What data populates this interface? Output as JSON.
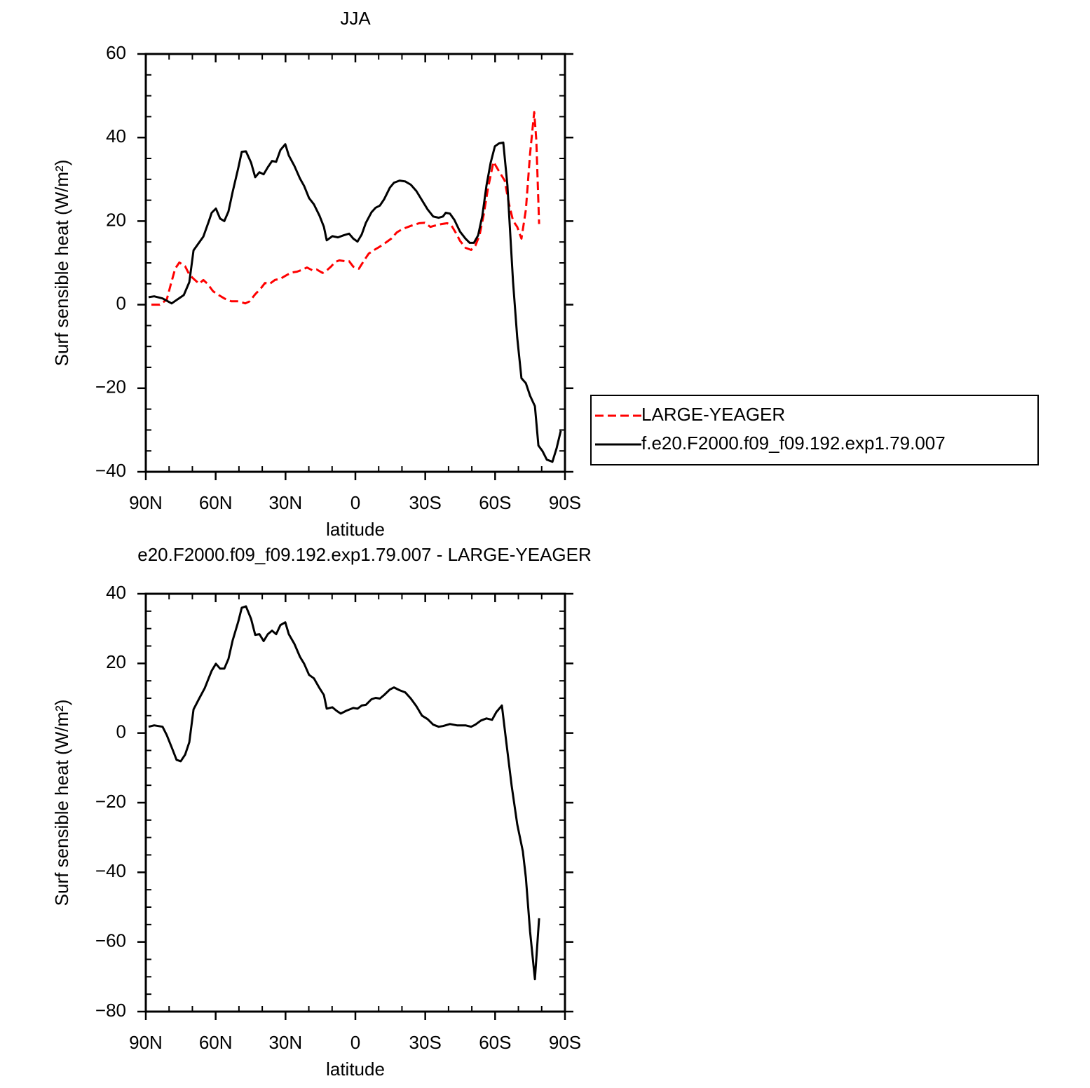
{
  "chart_data": [
    {
      "type": "line",
      "title": "JJA",
      "xlabel": "latitude",
      "ylabel": "Surf sensible heat (W/m²)",
      "xlim": [
        90,
        -90
      ],
      "xticks": [
        {
          "value": 90,
          "label": "90N"
        },
        {
          "value": 60,
          "label": "60N"
        },
        {
          "value": 30,
          "label": "30N"
        },
        0,
        {
          "value": -30,
          "label": "30S"
        },
        {
          "value": -60,
          "label": "60S"
        },
        {
          "value": -90,
          "label": "90S"
        }
      ],
      "ylim": [
        -40,
        60
      ],
      "yticks": [
        -40,
        -20,
        0,
        20,
        40,
        60
      ],
      "legend": "right",
      "series": [
        {
          "name": "LARGE-YEAGER",
          "color": "#ff0000",
          "linestyle": "dashed",
          "x": [
            87.6,
            84,
            81,
            79.2,
            77.4,
            75.6,
            73.1,
            71.3,
            69.5,
            67.1,
            65.3,
            63.5,
            61.1,
            58.7,
            56.3,
            53.3,
            50.3,
            47.3,
            45.4,
            43,
            40.6,
            38.8,
            37,
            34.6,
            32.2,
            29.8,
            27.4,
            25,
            22.6,
            20.8,
            18.4,
            16.6,
            14.1,
            12.3,
            10.5,
            8.7,
            6.9,
            4.5,
            2.7,
            0.9,
            -1.5,
            -3.3,
            -5.7,
            -8.1,
            -10.5,
            -12.9,
            -15.4,
            -17.8,
            -20.2,
            -22.6,
            -25,
            -27.4,
            -29.8,
            -32.2,
            -34.6,
            -37,
            -39.4,
            -41.2,
            -43,
            -44.9,
            -47.3,
            -49.7,
            -51.5,
            -53.3,
            -55.1,
            -56.9,
            -59.3,
            -61.7,
            -64.1,
            -65.9,
            -67.7,
            -69.5,
            -71.3,
            -73.2,
            -75,
            -76.8,
            -77.7,
            -78.9
          ],
          "values": [
            0,
            0,
            1.2,
            5,
            8.6,
            10.1,
            9.2,
            7.2,
            6.2,
            5,
            5.9,
            5,
            3.2,
            2.3,
            1.5,
            0.8,
            0.8,
            0.3,
            0.8,
            2.5,
            3.9,
            5.2,
            4.9,
            5.9,
            6.2,
            7,
            7.7,
            7.9,
            8.4,
            8.9,
            8.2,
            8.4,
            7.6,
            8.2,
            9.1,
            10.2,
            10.6,
            10.4,
            10.4,
            9.1,
            8.6,
            10.2,
            12.2,
            13.1,
            13.9,
            14.8,
            15.8,
            17.3,
            18.1,
            18.6,
            19.1,
            19.5,
            19.6,
            18.6,
            19,
            19.3,
            19.5,
            19,
            17.3,
            15.3,
            13.6,
            13.1,
            14.1,
            16.6,
            21.6,
            27.7,
            34.2,
            31.9,
            29.7,
            24.3,
            20.1,
            18.6,
            15.8,
            22.7,
            36.1,
            46.1,
            39.4,
            19.3
          ]
        },
        {
          "name": "f.e20.F2000.f09_f09.192.exp1.79.007",
          "color": "#000000",
          "linestyle": "solid",
          "x": [
            88.8,
            86.4,
            82.8,
            78.9,
            73.7,
            71.3,
            69.5,
            65.3,
            62.9,
            61.7,
            59.9,
            58.1,
            56.3,
            54.5,
            52.7,
            50.3,
            48.8,
            47,
            44.8,
            43,
            41.2,
            39.4,
            37.6,
            35.8,
            34,
            32.2,
            30.1,
            28.6,
            26.2,
            23.8,
            22,
            19.9,
            17.8,
            15.4,
            13.5,
            12.3,
            9.9,
            7.5,
            5.1,
            2.7,
            0.9,
            -0.9,
            -2.7,
            -4.5,
            -6.9,
            -8.7,
            -10.5,
            -12.3,
            -14.8,
            -16.6,
            -19,
            -21.4,
            -23.8,
            -26.2,
            -28.6,
            -31,
            -33.4,
            -35.8,
            -37.6,
            -38.8,
            -40.6,
            -42.5,
            -44.9,
            -47.3,
            -49.1,
            -50.9,
            -52.7,
            -54.5,
            -56.3,
            -58.1,
            -59.9,
            -61.7,
            -63.5,
            -65.3,
            -67.7,
            -69.5,
            -71.3,
            -73.2,
            -75,
            -77.1,
            -78.6,
            -80.4,
            -82.2,
            -84.6,
            -86.4,
            -88.2
          ],
          "values": [
            1.8,
            2,
            1.5,
            0.3,
            2.3,
            5.4,
            13,
            16.3,
            20,
            22,
            23,
            20.6,
            20,
            22.3,
            27,
            32.7,
            36.6,
            36.7,
            34,
            30.5,
            31.7,
            31.2,
            32.9,
            34.4,
            34.2,
            37,
            38.4,
            35.7,
            33.2,
            30.2,
            28.4,
            25.5,
            24,
            21.3,
            18.6,
            15.4,
            16.4,
            16.1,
            16.6,
            17,
            15.8,
            15.1,
            16.8,
            19.6,
            22.1,
            23.2,
            23.7,
            25.2,
            28,
            29.2,
            29.7,
            29.5,
            28.7,
            27.2,
            25,
            22.8,
            21.1,
            20.8,
            21.1,
            22,
            21.8,
            20.3,
            17.5,
            15.8,
            14.8,
            14.8,
            16.6,
            21.3,
            28.5,
            34,
            37.9,
            38.6,
            38.8,
            28.5,
            5.5,
            -7.9,
            -17.6,
            -18.8,
            -21.8,
            -24.3,
            -33.7,
            -35.1,
            -37.1,
            -37.6,
            -34.4,
            -30.2
          ]
        }
      ]
    },
    {
      "type": "line",
      "title": "e20.F2000.f09_f09.192.exp1.79.007 - LARGE-YEAGER",
      "xlabel": "latitude",
      "ylabel": "Surf sensible heat (W/m²)",
      "xlim": [
        90,
        -90
      ],
      "xticks": [
        {
          "value": 90,
          "label": "90N"
        },
        {
          "value": 60,
          "label": "60N"
        },
        {
          "value": 30,
          "label": "30N"
        },
        0,
        {
          "value": -30,
          "label": "30S"
        },
        {
          "value": -60,
          "label": "60S"
        },
        {
          "value": -90,
          "label": "90S"
        }
      ],
      "ylim": [
        -80,
        40
      ],
      "yticks": [
        -80,
        -60,
        -40,
        -20,
        0,
        20,
        40
      ],
      "series": [
        {
          "color": "#000000",
          "linestyle": "solid",
          "x": [
            88.8,
            86.4,
            82.8,
            81,
            78.6,
            76.8,
            75,
            73.1,
            71.3,
            69.5,
            67.1,
            64.7,
            62.9,
            61.7,
            59.9,
            58.1,
            56.3,
            54.5,
            52.7,
            50.3,
            48.8,
            47,
            44.8,
            43,
            41.2,
            39.4,
            37.6,
            35.8,
            34,
            32.2,
            30.1,
            28.6,
            26.2,
            23.8,
            22,
            19.9,
            17.8,
            15.4,
            13.5,
            12.3,
            9.9,
            8.1,
            6.3,
            3.9,
            0.9,
            -0.9,
            -2.7,
            -4.5,
            -6.9,
            -8.7,
            -10.5,
            -12.3,
            -14.8,
            -16.6,
            -19,
            -21.4,
            -23.8,
            -26.2,
            -28.6,
            -31,
            -33.4,
            -35.8,
            -37.6,
            -40.6,
            -43.6,
            -47.3,
            -49.7,
            -51.5,
            -53.9,
            -56.3,
            -58.7,
            -60.5,
            -62.9,
            -64.7,
            -67.1,
            -69.5,
            -71.9,
            -73.2,
            -75,
            -77.1,
            -78.9
          ],
          "values": [
            1.8,
            2.2,
            1.8,
            -0.6,
            -4.6,
            -7.7,
            -8.1,
            -6.2,
            -2.6,
            6.8,
            9.9,
            12.9,
            15.9,
            17.9,
            19.9,
            18.5,
            18.5,
            21.3,
            26.6,
            32,
            36,
            36.4,
            32.8,
            28.2,
            28.4,
            26.4,
            28.4,
            29.4,
            28.4,
            31,
            31.8,
            28.4,
            25.6,
            21.9,
            19.9,
            16.7,
            15.7,
            12.9,
            10.9,
            7,
            7.4,
            6.4,
            5.6,
            6.4,
            7.2,
            7,
            7.9,
            8.1,
            9.7,
            10.1,
            9.9,
            10.9,
            12.5,
            13.1,
            12.3,
            11.7,
            9.9,
            7.7,
            5,
            4,
            2.4,
            1.8,
            2,
            2.6,
            2.2,
            2.2,
            1.8,
            2.4,
            3.6,
            4.2,
            3.8,
            6,
            7.9,
            -2,
            -15.1,
            -26.2,
            -34,
            -41.5,
            -57,
            -70.7,
            -53.2
          ]
        }
      ]
    }
  ]
}
